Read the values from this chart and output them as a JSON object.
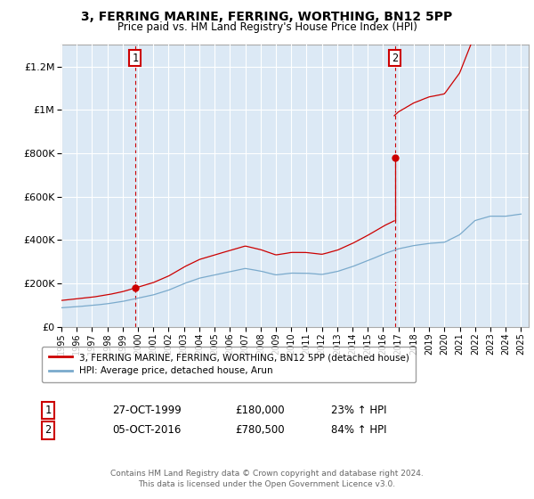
{
  "title": "3, FERRING MARINE, FERRING, WORTHING, BN12 5PP",
  "subtitle": "Price paid vs. HM Land Registry's House Price Index (HPI)",
  "legend_label_red": "3, FERRING MARINE, FERRING, WORTHING, BN12 5PP (detached house)",
  "legend_label_blue": "HPI: Average price, detached house, Arun",
  "footer": "Contains HM Land Registry data © Crown copyright and database right 2024.\nThis data is licensed under the Open Government Licence v3.0.",
  "marker1_date": "27-OCT-1999",
  "marker1_price": 180000,
  "marker1_hpi": "23% ↑ HPI",
  "marker1_label": "1",
  "marker1_x": 1999.82,
  "marker2_date": "05-OCT-2016",
  "marker2_price": 780500,
  "marker2_hpi": "84% ↑ HPI",
  "marker2_label": "2",
  "marker2_x": 2016.76,
  "ylim_min": 0,
  "ylim_max": 1300000,
  "xlim_min": 1995.0,
  "xlim_max": 2025.5,
  "background_color": "#ffffff",
  "chart_bg_color": "#dce9f5",
  "grid_color": "#ffffff",
  "red_color": "#cc0000",
  "blue_color": "#7aaacc"
}
